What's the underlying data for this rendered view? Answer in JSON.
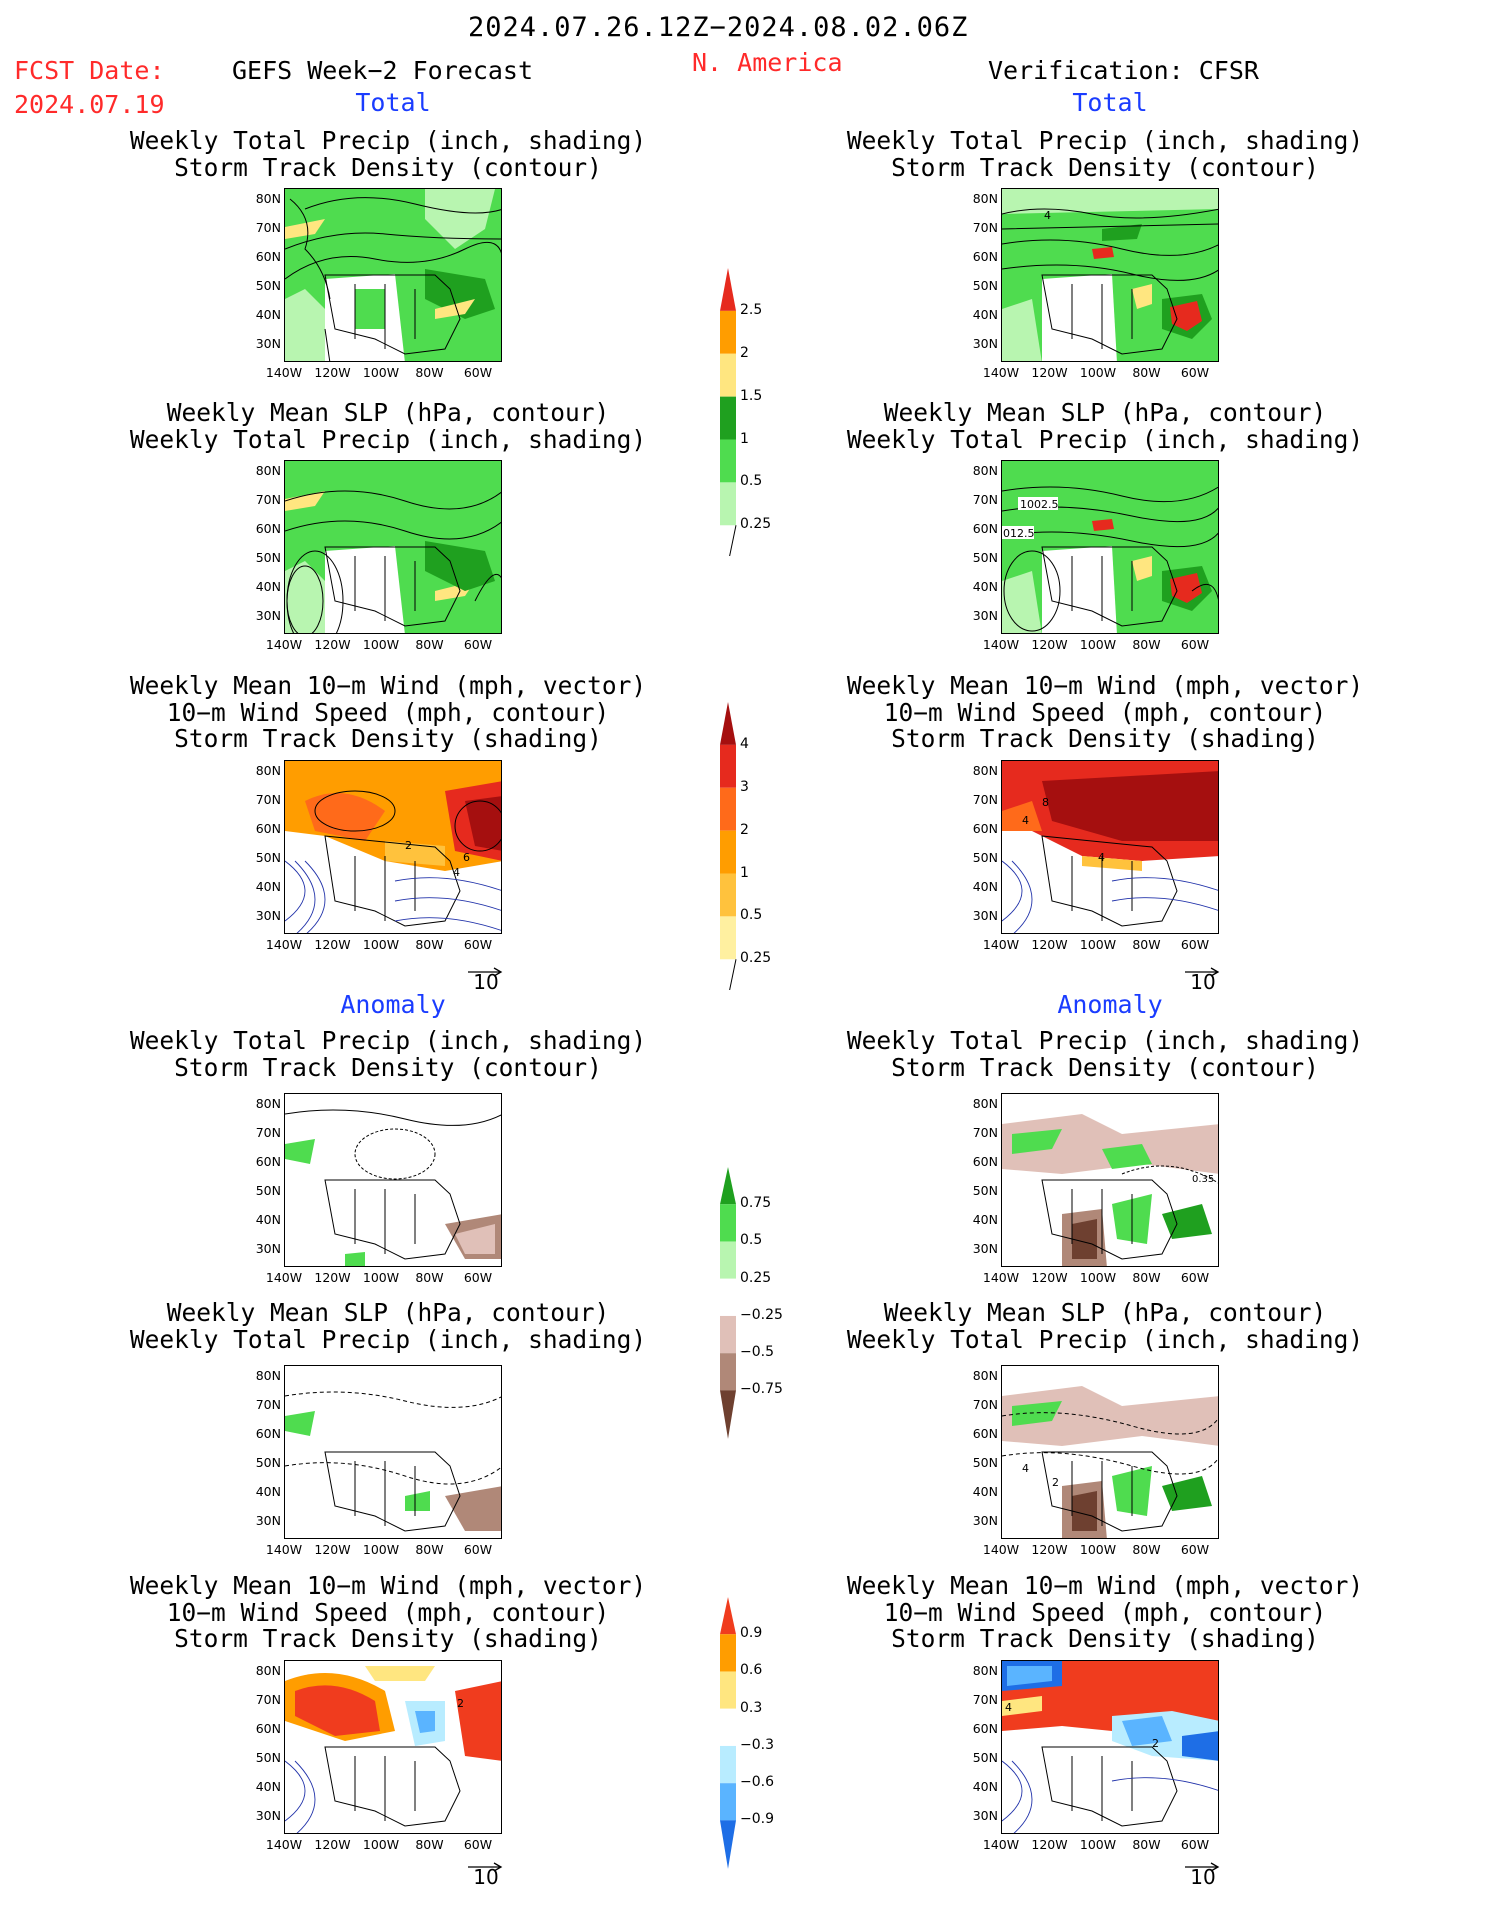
{
  "header": {
    "period": "2024.07.26.12Z−2024.08.02.06Z",
    "fcst_label": "FCST Date:",
    "fcst_date": "2024.07.19",
    "forecast_title": "GEFS Week−2 Forecast",
    "region": "N. America",
    "verification": "Verification: CFSR"
  },
  "sections": {
    "total": "Total",
    "anomaly": "Anomaly"
  },
  "panel_titles": {
    "precip_storm": "Weekly Total Precip (inch, shading)\nStorm Track Density (contour)",
    "slp_precip": "Weekly Mean SLP (hPa, contour)\nWeekly Total Precip (inch, shading)",
    "wind_storm": "Weekly Mean 10−m Wind (mph, vector)\n10−m Wind Speed (mph, contour)\nStorm Track Density (shading)"
  },
  "axes": {
    "lat_ticks": [
      "80N",
      "70N",
      "60N",
      "50N",
      "40N",
      "30N"
    ],
    "lon_ticks": [
      "140W",
      "120W",
      "100W",
      "80W",
      "60W"
    ]
  },
  "vector_ref": "10",
  "colorbars": {
    "precip_total": {
      "labels": [
        "2.5",
        "2",
        "1.5",
        "1",
        "0.5",
        "0.25"
      ],
      "colors": [
        "#e62a1e",
        "#ff9d00",
        "#ffe680",
        "#1fa01f",
        "#4fdc4f",
        "#b8f5b0"
      ]
    },
    "storm_total": {
      "labels": [
        "4",
        "3",
        "2",
        "1",
        "0.5",
        "0.25"
      ],
      "colors": [
        "#a50f0f",
        "#e62a1e",
        "#ff6a1a",
        "#ff9d00",
        "#ffc23d",
        "#fff0a0"
      ]
    },
    "precip_anom": {
      "labels": [
        "0.75",
        "0.5",
        "0.25",
        "−0.25",
        "−0.5",
        "−0.75"
      ],
      "colors": [
        "#1fa01f",
        "#4fdc4f",
        "#b8f5b0",
        "#ffffff",
        "#e0c0b8",
        "#b08878",
        "#6e4030"
      ]
    },
    "storm_anom": {
      "labels": [
        "0.9",
        "0.6",
        "0.3",
        "−0.3",
        "−0.6",
        "−0.9"
      ],
      "colors": [
        "#f03c1e",
        "#ff9d00",
        "#ffe680",
        "#ffffff",
        "#b8ecff",
        "#5ab4ff",
        "#1e6ee6"
      ]
    }
  },
  "contour_labels": {
    "r1_right": "4",
    "r2_right_a": "1002.5",
    "r2_right_b": "012.5",
    "r3_left_a": "2",
    "r3_left_b": "6",
    "r3_left_c": "4",
    "r3_right_a": "8",
    "r3_right_b": "4",
    "r3_right_c": "4",
    "r4_right": "0.35",
    "r5_right_a": "4",
    "r5_right_b": "2",
    "r6_left": "2",
    "r6_right_a": "4",
    "r6_right_b": "2"
  }
}
